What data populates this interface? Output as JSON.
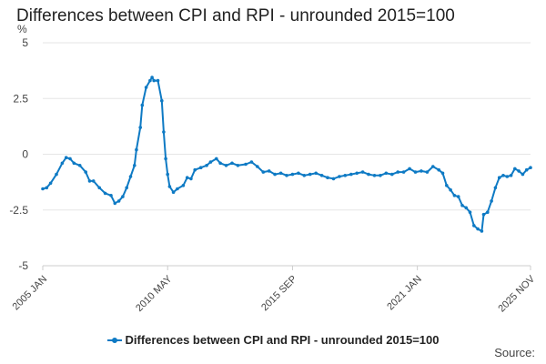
{
  "chart_data": {
    "type": "line",
    "title": "Differences between CPI and RPI - unrounded 2015=100",
    "ylabel": "%",
    "xlabel": "",
    "ylim": [
      -5,
      5
    ],
    "yticks": [
      5,
      2.5,
      0,
      -2.5,
      -5
    ],
    "ytick_labels": [
      "5",
      "2.5",
      "0",
      "-2.5",
      "-5"
    ],
    "xtick_labels": [
      "2005 JAN",
      "2010 MAY",
      "2015 SEP",
      "2021 JAN",
      "2025 NOV"
    ],
    "grid": true,
    "legend_position": "bottom",
    "series": [
      {
        "name": "Differences between CPI and RPI - unrounded 2015=100",
        "color": "#0e7ac4",
        "points": [
          [
            "2005-01",
            -1.55
          ],
          [
            "2005-03",
            -1.5
          ],
          [
            "2005-05",
            -1.3
          ],
          [
            "2005-08",
            -0.9
          ],
          [
            "2005-11",
            -0.4
          ],
          [
            "2006-01",
            -0.15
          ],
          [
            "2006-03",
            -0.2
          ],
          [
            "2006-05",
            -0.4
          ],
          [
            "2006-08",
            -0.5
          ],
          [
            "2006-11",
            -0.8
          ],
          [
            "2007-01",
            -1.2
          ],
          [
            "2007-03",
            -1.2
          ],
          [
            "2007-06",
            -1.5
          ],
          [
            "2007-09",
            -1.75
          ],
          [
            "2007-12",
            -1.85
          ],
          [
            "2008-02",
            -2.2
          ],
          [
            "2008-04",
            -2.1
          ],
          [
            "2008-06",
            -1.9
          ],
          [
            "2008-08",
            -1.5
          ],
          [
            "2008-10",
            -1.0
          ],
          [
            "2008-12",
            -0.5
          ],
          [
            "2009-01",
            0.2
          ],
          [
            "2009-03",
            1.2
          ],
          [
            "2009-04",
            2.2
          ],
          [
            "2009-06",
            3.0
          ],
          [
            "2009-08",
            3.3
          ],
          [
            "2009-09",
            3.45
          ],
          [
            "2009-10",
            3.3
          ],
          [
            "2009-12",
            3.3
          ],
          [
            "2010-02",
            2.4
          ],
          [
            "2010-03",
            1.0
          ],
          [
            "2010-04",
            -0.2
          ],
          [
            "2010-05",
            -0.9
          ],
          [
            "2010-06",
            -1.45
          ],
          [
            "2010-08",
            -1.7
          ],
          [
            "2010-10",
            -1.55
          ],
          [
            "2011-01",
            -1.4
          ],
          [
            "2011-03",
            -1.05
          ],
          [
            "2011-05",
            -1.1
          ],
          [
            "2011-07",
            -0.7
          ],
          [
            "2011-10",
            -0.6
          ],
          [
            "2012-01",
            -0.5
          ],
          [
            "2012-03",
            -0.35
          ],
          [
            "2012-06",
            -0.2
          ],
          [
            "2012-08",
            -0.4
          ],
          [
            "2012-11",
            -0.5
          ],
          [
            "2013-02",
            -0.4
          ],
          [
            "2013-05",
            -0.5
          ],
          [
            "2013-09",
            -0.45
          ],
          [
            "2013-12",
            -0.35
          ],
          [
            "2014-03",
            -0.55
          ],
          [
            "2014-06",
            -0.8
          ],
          [
            "2014-09",
            -0.75
          ],
          [
            "2014-12",
            -0.9
          ],
          [
            "2015-03",
            -0.85
          ],
          [
            "2015-06",
            -0.95
          ],
          [
            "2015-09",
            -0.9
          ],
          [
            "2015-12",
            -0.85
          ],
          [
            "2016-03",
            -0.95
          ],
          [
            "2016-06",
            -0.9
          ],
          [
            "2016-09",
            -0.85
          ],
          [
            "2016-12",
            -0.95
          ],
          [
            "2017-03",
            -1.05
          ],
          [
            "2017-06",
            -1.1
          ],
          [
            "2017-09",
            -1.0
          ],
          [
            "2017-12",
            -0.95
          ],
          [
            "2018-03",
            -0.9
          ],
          [
            "2018-06",
            -0.85
          ],
          [
            "2018-09",
            -0.8
          ],
          [
            "2018-12",
            -0.9
          ],
          [
            "2019-03",
            -0.95
          ],
          [
            "2019-06",
            -0.95
          ],
          [
            "2019-09",
            -0.85
          ],
          [
            "2019-12",
            -0.9
          ],
          [
            "2020-03",
            -0.8
          ],
          [
            "2020-06",
            -0.8
          ],
          [
            "2020-09",
            -0.65
          ],
          [
            "2020-12",
            -0.8
          ],
          [
            "2021-03",
            -0.75
          ],
          [
            "2021-06",
            -0.8
          ],
          [
            "2021-09",
            -0.55
          ],
          [
            "2021-12",
            -0.7
          ],
          [
            "2022-02",
            -0.85
          ],
          [
            "2022-04",
            -1.4
          ],
          [
            "2022-06",
            -1.6
          ],
          [
            "2022-08",
            -1.85
          ],
          [
            "2022-10",
            -1.9
          ],
          [
            "2022-12",
            -2.3
          ],
          [
            "2023-02",
            -2.4
          ],
          [
            "2023-04",
            -2.6
          ],
          [
            "2023-06",
            -3.2
          ],
          [
            "2023-08",
            -3.35
          ],
          [
            "2023-10",
            -3.45
          ],
          [
            "2023-11",
            -2.7
          ],
          [
            "2024-01",
            -2.6
          ],
          [
            "2024-03",
            -2.1
          ],
          [
            "2024-05",
            -1.5
          ],
          [
            "2024-07",
            -1.05
          ],
          [
            "2024-09",
            -0.95
          ],
          [
            "2024-11",
            -1.0
          ],
          [
            "2025-01",
            -0.95
          ],
          [
            "2025-03",
            -0.65
          ],
          [
            "2025-05",
            -0.75
          ],
          [
            "2025-07",
            -0.9
          ],
          [
            "2025-09",
            -0.7
          ],
          [
            "2025-11",
            -0.6
          ]
        ]
      }
    ]
  },
  "footer": {
    "source_label": "Source:"
  }
}
